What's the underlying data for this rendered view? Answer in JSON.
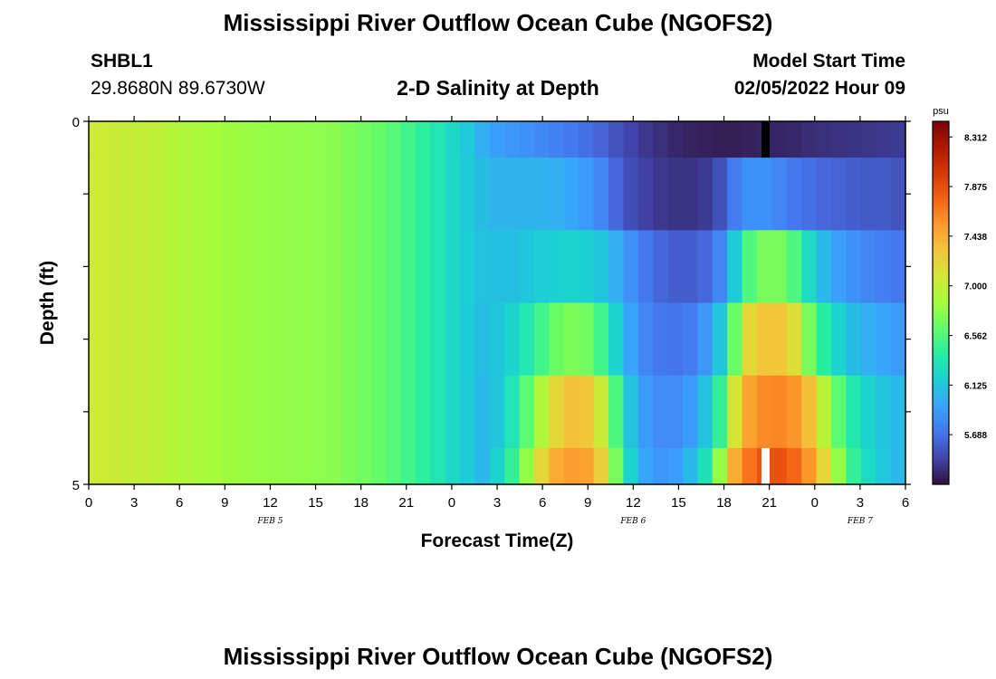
{
  "header": {
    "title": "Mississippi River Outflow Ocean Cube (NGOFS2)",
    "station_id": "SHBL1",
    "coordinates": "29.8680N  89.6730W",
    "subtitle": "2-D Salinity at Depth",
    "model_start_label": "Model Start Time",
    "model_start_value": "02/05/2022 Hour 09"
  },
  "footer": {
    "title": "Mississippi River Outflow Ocean Cube (NGOFS2)"
  },
  "chart_data": {
    "type": "heatmap",
    "title": "2-D Salinity at Depth",
    "xlabel": "Forecast Time(Z)",
    "ylabel": "Depth (ft)",
    "x_start_hour": 0,
    "x_end_hour": 54,
    "x_step_hours": 1,
    "x_tick_labels": [
      "0",
      "3",
      "6",
      "9",
      "12",
      "15",
      "18",
      "21",
      "0",
      "3",
      "6",
      "9",
      "12",
      "15",
      "18",
      "21",
      "0",
      "3",
      "6"
    ],
    "date_labels": [
      {
        "label": "FEB 5",
        "hour": 12
      },
      {
        "label": "FEB 6",
        "hour": 36
      },
      {
        "label": "FEB 7",
        "hour": 51
      }
    ],
    "y_range": [
      0,
      5
    ],
    "y_tick_labels": [
      "0",
      "5"
    ],
    "colorbar": {
      "unit": "psu",
      "min": 5.25,
      "max": 8.45,
      "tick_labels": [
        "8.312",
        "7.875",
        "7.438",
        "7.000",
        "6.562",
        "6.125",
        "5.688"
      ],
      "colors": [
        "#30123b",
        "#4145ab",
        "#4675ed",
        "#39a2fc",
        "#1bcfd4",
        "#24eca6",
        "#61fc6c",
        "#a4fc3b",
        "#d1e834",
        "#f3c63a",
        "#fe9b2d",
        "#f36315",
        "#d93806",
        "#b11901",
        "#7a0402"
      ]
    },
    "depth_rows": [
      {
        "top": 0.0,
        "bottom": 0.5
      },
      {
        "top": 0.5,
        "bottom": 1.5
      },
      {
        "top": 1.5,
        "bottom": 2.5
      },
      {
        "top": 2.5,
        "bottom": 3.5
      },
      {
        "top": 3.5,
        "bottom": 4.5
      },
      {
        "top": 4.5,
        "bottom": 5.0
      }
    ],
    "salinity_psu": [
      [
        7.06,
        7.05,
        7.03,
        7.0,
        6.97,
        6.94,
        6.91,
        6.88,
        6.85,
        6.83,
        6.82,
        6.81,
        6.8,
        6.79,
        6.78,
        6.77,
        6.76,
        6.72,
        6.68,
        6.64,
        6.58,
        6.5,
        6.42,
        6.33,
        6.23,
        6.13,
        6.0,
        5.92,
        5.88,
        5.85,
        5.81,
        5.77,
        5.73,
        5.68,
        5.62,
        5.55,
        5.48,
        5.42,
        5.38,
        5.35,
        5.33,
        5.32,
        5.31,
        5.31,
        5.32,
        5.33,
        5.34,
        5.35,
        5.37,
        5.38,
        5.39,
        5.4,
        5.41,
        5.42,
        5.43
      ],
      [
        7.06,
        7.05,
        7.03,
        7.0,
        6.97,
        6.94,
        6.91,
        6.88,
        6.85,
        6.83,
        6.82,
        6.81,
        6.8,
        6.79,
        6.78,
        6.77,
        6.76,
        6.72,
        6.68,
        6.64,
        6.58,
        6.5,
        6.42,
        6.33,
        6.23,
        6.15,
        6.07,
        6.03,
        6.02,
        6.03,
        6.02,
        6.0,
        5.96,
        5.9,
        5.8,
        5.65,
        5.52,
        5.46,
        5.42,
        5.4,
        5.4,
        5.43,
        5.53,
        5.75,
        5.85,
        5.85,
        5.8,
        5.72,
        5.68,
        5.65,
        5.62,
        5.6,
        5.58,
        5.58,
        5.55
      ],
      [
        7.06,
        7.05,
        7.03,
        7.0,
        6.97,
        6.94,
        6.91,
        6.88,
        6.85,
        6.83,
        6.82,
        6.81,
        6.8,
        6.79,
        6.78,
        6.77,
        6.76,
        6.72,
        6.68,
        6.64,
        6.58,
        6.5,
        6.42,
        6.33,
        6.23,
        6.16,
        6.1,
        6.09,
        6.09,
        6.12,
        6.16,
        6.18,
        6.2,
        6.18,
        6.12,
        6.0,
        5.85,
        5.72,
        5.64,
        5.6,
        5.6,
        5.65,
        5.8,
        6.15,
        6.55,
        6.7,
        6.7,
        6.55,
        6.25,
        6.05,
        5.93,
        5.85,
        5.8,
        5.76,
        5.72
      ],
      [
        7.06,
        7.05,
        7.03,
        7.0,
        6.97,
        6.94,
        6.91,
        6.88,
        6.85,
        6.83,
        6.82,
        6.81,
        6.8,
        6.79,
        6.78,
        6.77,
        6.76,
        6.72,
        6.68,
        6.64,
        6.58,
        6.5,
        6.42,
        6.33,
        6.23,
        6.15,
        6.08,
        6.12,
        6.2,
        6.35,
        6.5,
        6.65,
        6.72,
        6.68,
        6.5,
        6.2,
        5.95,
        5.8,
        5.72,
        5.7,
        5.75,
        5.88,
        6.12,
        6.65,
        7.2,
        7.3,
        7.3,
        7.15,
        6.7,
        6.4,
        6.2,
        6.07,
        6.0,
        5.95,
        5.9
      ],
      [
        7.06,
        7.05,
        7.03,
        7.0,
        6.97,
        6.94,
        6.91,
        6.88,
        6.85,
        6.83,
        6.82,
        6.81,
        6.8,
        6.79,
        6.78,
        6.77,
        6.76,
        6.72,
        6.68,
        6.64,
        6.58,
        6.5,
        6.42,
        6.33,
        6.23,
        6.15,
        6.05,
        6.12,
        6.32,
        6.6,
        6.92,
        7.2,
        7.33,
        7.3,
        7.05,
        6.55,
        6.1,
        5.9,
        5.82,
        5.82,
        5.9,
        6.1,
        6.45,
        7.1,
        7.5,
        7.6,
        7.62,
        7.55,
        7.35,
        6.95,
        6.6,
        6.35,
        6.2,
        6.12,
        6.05
      ],
      [
        7.06,
        7.05,
        7.03,
        7.0,
        6.97,
        6.94,
        6.91,
        6.88,
        6.85,
        6.83,
        6.82,
        6.81,
        6.8,
        6.79,
        6.78,
        6.77,
        6.76,
        6.72,
        6.68,
        6.64,
        6.58,
        6.5,
        6.42,
        6.33,
        6.23,
        6.15,
        6.05,
        6.2,
        6.45,
        6.8,
        7.2,
        7.45,
        7.52,
        7.5,
        7.25,
        6.7,
        6.2,
        5.95,
        5.88,
        5.92,
        6.05,
        6.3,
        6.8,
        7.45,
        7.7,
        7.85,
        7.85,
        7.75,
        7.55,
        7.2,
        6.8,
        6.45,
        6.25,
        6.13,
        6.05
      ]
    ],
    "missing_cells": [
      {
        "hour": 45,
        "depth_row": 0,
        "color": "#000000"
      },
      {
        "hour": 45,
        "depth_row": 5,
        "color": "#ffffff"
      }
    ]
  }
}
